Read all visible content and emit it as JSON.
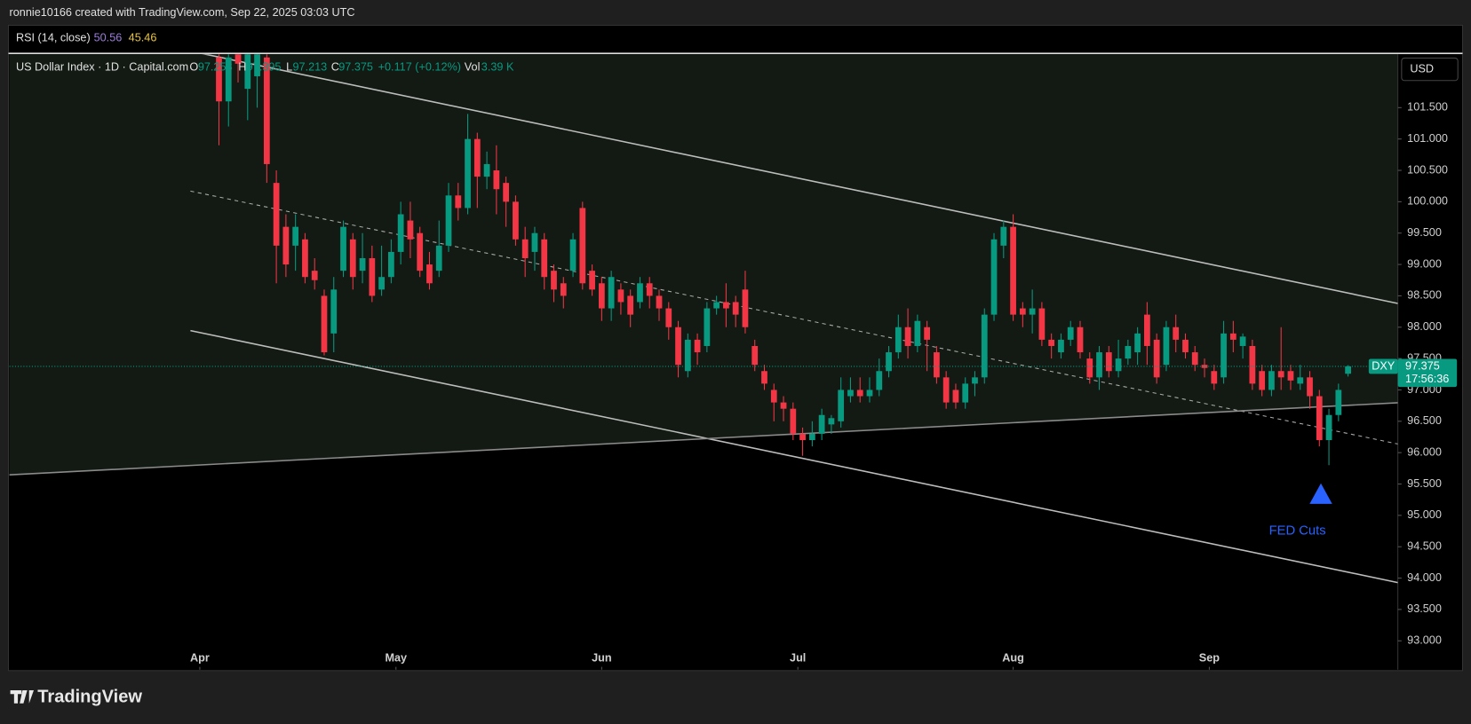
{
  "header": {
    "attribution": "ronnie10166 created with TradingView.com, Sep 22, 2025 03:03 UTC"
  },
  "rsi": {
    "label": "RSI (14, close)",
    "value1": "50.56",
    "value2": "45.46"
  },
  "legend": {
    "o": "O",
    "h": "H",
    "l": "L",
    "c": "C",
    "change": "+0.117 (+0.12%)",
    "vol_label": "Vol",
    "vol": "3.39 K"
  },
  "price_scale": {
    "currency": "USD",
    "symbol": "DXY",
    "countdown": "17:56:36"
  },
  "annotation": "FED Cuts",
  "footer": {
    "brand": "TradingView"
  },
  "chart_data": {
    "type": "candlestick",
    "title": "US Dollar Index · 1D · Capital.com",
    "up_color": "#089981",
    "down_color": "#f23645",
    "x": [
      2,
      3,
      4,
      5,
      6,
      7,
      8,
      9,
      10,
      11,
      12,
      13,
      14,
      15,
      16,
      17,
      18,
      19,
      20,
      21,
      22,
      23,
      24,
      25,
      26,
      27,
      28,
      29,
      30,
      31,
      32,
      33,
      34,
      35,
      36,
      37,
      38,
      39,
      40,
      41,
      42,
      43,
      44,
      45,
      46,
      47,
      48,
      49,
      50,
      51,
      52,
      53,
      54,
      55,
      56,
      57,
      58,
      59,
      60,
      61,
      62,
      63,
      64,
      65,
      66,
      67,
      68,
      69,
      70,
      71,
      72,
      73,
      74,
      75,
      76,
      77,
      78,
      79,
      80,
      81,
      82,
      83,
      84,
      85,
      86,
      87,
      88,
      89,
      90,
      91,
      92,
      93,
      94,
      95,
      96,
      97,
      98,
      99,
      100,
      101,
      102,
      103,
      104,
      105,
      106,
      107,
      108,
      109,
      110,
      111,
      112,
      113,
      114,
      115,
      116,
      117,
      118,
      119,
      120
    ],
    "ohlc": [
      [
        102.3,
        102.5,
        100.9,
        101.6
      ],
      [
        101.6,
        102.4,
        101.2,
        102.3
      ],
      [
        102.5,
        102.6,
        101.9,
        102.2
      ],
      [
        101.8,
        102.6,
        101.3,
        102.4
      ],
      [
        102.0,
        102.6,
        101.5,
        102.4
      ],
      [
        102.3,
        102.5,
        100.3,
        100.6
      ],
      [
        100.3,
        100.5,
        98.7,
        99.3
      ],
      [
        99.6,
        99.8,
        98.8,
        99.0
      ],
      [
        99.3,
        99.8,
        98.9,
        99.6
      ],
      [
        99.4,
        99.5,
        98.7,
        98.8
      ],
      [
        98.9,
        99.1,
        98.6,
        98.75
      ],
      [
        98.5,
        98.6,
        97.55,
        97.6
      ],
      [
        97.9,
        98.8,
        97.6,
        98.6
      ],
      [
        98.9,
        99.7,
        98.8,
        99.6
      ],
      [
        99.4,
        99.5,
        98.6,
        98.8
      ],
      [
        98.9,
        99.5,
        98.7,
        99.1
      ],
      [
        99.1,
        99.3,
        98.4,
        98.5
      ],
      [
        98.6,
        99.3,
        98.5,
        98.8
      ],
      [
        98.8,
        99.4,
        98.7,
        99.2
      ],
      [
        99.2,
        100.0,
        99.0,
        99.8
      ],
      [
        99.7,
        100.0,
        99.1,
        99.4
      ],
      [
        99.5,
        99.6,
        98.8,
        98.9
      ],
      [
        99.0,
        99.2,
        98.6,
        98.7
      ],
      [
        98.9,
        99.7,
        98.8,
        99.3
      ],
      [
        99.3,
        100.3,
        99.2,
        100.1
      ],
      [
        100.1,
        100.3,
        99.7,
        99.9
      ],
      [
        99.9,
        101.4,
        99.8,
        101.0
      ],
      [
        101.0,
        101.1,
        99.9,
        100.4
      ],
      [
        100.4,
        100.8,
        100.2,
        100.6
      ],
      [
        100.5,
        100.9,
        99.8,
        100.2
      ],
      [
        100.3,
        100.4,
        99.6,
        100.0
      ],
      [
        100.0,
        100.1,
        99.3,
        99.4
      ],
      [
        99.4,
        99.6,
        98.8,
        99.1
      ],
      [
        99.2,
        99.6,
        98.9,
        99.5
      ],
      [
        99.4,
        99.5,
        98.6,
        98.8
      ],
      [
        98.9,
        99.0,
        98.4,
        98.6
      ],
      [
        98.7,
        98.8,
        98.3,
        98.5
      ],
      [
        98.9,
        99.5,
        98.8,
        99.4
      ],
      [
        99.9,
        100.0,
        98.6,
        98.7
      ],
      [
        98.9,
        99.0,
        98.5,
        98.6
      ],
      [
        98.7,
        98.8,
        98.1,
        98.3
      ],
      [
        98.3,
        98.9,
        98.1,
        98.8
      ],
      [
        98.6,
        98.7,
        98.2,
        98.4
      ],
      [
        98.5,
        98.6,
        98.0,
        98.2
      ],
      [
        98.4,
        98.8,
        98.3,
        98.7
      ],
      [
        98.7,
        98.8,
        98.3,
        98.5
      ],
      [
        98.5,
        98.6,
        98.1,
        98.3
      ],
      [
        98.3,
        98.4,
        97.8,
        98.0
      ],
      [
        98.0,
        98.1,
        97.2,
        97.4
      ],
      [
        97.3,
        97.9,
        97.2,
        97.8
      ],
      [
        97.8,
        97.9,
        97.4,
        97.6
      ],
      [
        97.7,
        98.4,
        97.6,
        98.3
      ],
      [
        98.3,
        98.5,
        98.2,
        98.4
      ],
      [
        98.4,
        98.7,
        98.0,
        98.3
      ],
      [
        98.4,
        98.5,
        98.0,
        98.2
      ],
      [
        98.6,
        98.9,
        97.9,
        98.0
      ],
      [
        97.7,
        97.8,
        97.3,
        97.4
      ],
      [
        97.3,
        97.4,
        97.0,
        97.1
      ],
      [
        97.0,
        97.1,
        96.5,
        96.8
      ],
      [
        96.8,
        96.9,
        96.5,
        96.7
      ],
      [
        96.7,
        96.8,
        96.2,
        96.3
      ],
      [
        96.3,
        96.4,
        95.95,
        96.2
      ],
      [
        96.2,
        96.5,
        96.1,
        96.3
      ],
      [
        96.3,
        96.7,
        96.2,
        96.6
      ],
      [
        96.45,
        96.6,
        96.3,
        96.55
      ],
      [
        96.5,
        97.2,
        96.4,
        97.0
      ],
      [
        96.9,
        97.2,
        96.8,
        97.0
      ],
      [
        97.0,
        97.2,
        96.8,
        96.9
      ],
      [
        96.9,
        97.2,
        96.8,
        97.0
      ],
      [
        97.0,
        97.5,
        96.9,
        97.3
      ],
      [
        97.3,
        97.7,
        97.2,
        97.6
      ],
      [
        97.6,
        98.2,
        97.5,
        98.0
      ],
      [
        98.0,
        98.3,
        97.5,
        97.7
      ],
      [
        97.7,
        98.2,
        97.6,
        98.1
      ],
      [
        98.0,
        98.1,
        97.3,
        97.8
      ],
      [
        97.6,
        97.7,
        97.1,
        97.2
      ],
      [
        97.2,
        97.3,
        96.7,
        96.8
      ],
      [
        97.0,
        97.1,
        96.7,
        96.8
      ],
      [
        96.8,
        97.2,
        96.7,
        97.1
      ],
      [
        97.1,
        97.3,
        96.9,
        97.2
      ],
      [
        97.2,
        98.3,
        97.1,
        98.2
      ],
      [
        98.2,
        99.5,
        98.1,
        99.4
      ],
      [
        99.3,
        99.7,
        99.1,
        99.6
      ],
      [
        99.6,
        99.8,
        98.1,
        98.2
      ],
      [
        98.3,
        98.4,
        98.0,
        98.2
      ],
      [
        98.2,
        98.6,
        97.9,
        98.3
      ],
      [
        98.3,
        98.4,
        97.7,
        97.8
      ],
      [
        97.8,
        97.9,
        97.5,
        97.7
      ],
      [
        97.6,
        97.9,
        97.5,
        97.8
      ],
      [
        97.8,
        98.1,
        97.7,
        98.0
      ],
      [
        98.0,
        98.1,
        97.5,
        97.6
      ],
      [
        97.5,
        97.6,
        97.1,
        97.2
      ],
      [
        97.2,
        97.7,
        97.0,
        97.6
      ],
      [
        97.6,
        97.7,
        97.2,
        97.3
      ],
      [
        97.3,
        97.8,
        97.2,
        97.5
      ],
      [
        97.5,
        97.8,
        97.4,
        97.7
      ],
      [
        97.6,
        98.0,
        97.4,
        97.9
      ],
      [
        98.2,
        98.4,
        97.4,
        97.7
      ],
      [
        97.8,
        97.9,
        97.1,
        97.2
      ],
      [
        97.4,
        98.1,
        97.3,
        98.0
      ],
      [
        98.0,
        98.2,
        97.6,
        97.8
      ],
      [
        97.8,
        97.9,
        97.5,
        97.6
      ],
      [
        97.6,
        97.7,
        97.3,
        97.4
      ],
      [
        97.4,
        97.5,
        97.2,
        97.35
      ],
      [
        97.3,
        97.4,
        97.0,
        97.1
      ],
      [
        97.2,
        98.1,
        97.1,
        97.9
      ],
      [
        97.9,
        98.1,
        97.6,
        97.8
      ],
      [
        97.7,
        97.9,
        97.5,
        97.85
      ],
      [
        97.7,
        97.8,
        97.0,
        97.1
      ],
      [
        97.3,
        97.4,
        96.9,
        97.0
      ],
      [
        97.0,
        97.4,
        96.9,
        97.3
      ],
      [
        97.3,
        98.0,
        97.0,
        97.2
      ],
      [
        97.3,
        97.4,
        97.0,
        97.15
      ],
      [
        97.1,
        97.4,
        97.0,
        97.2
      ],
      [
        97.2,
        97.3,
        96.7,
        96.9
      ],
      [
        96.9,
        97.0,
        96.1,
        96.2
      ],
      [
        96.2,
        96.7,
        95.8,
        96.6
      ],
      [
        96.6,
        97.1,
        96.5,
        97.0
      ],
      [
        97.258,
        97.395,
        97.213,
        97.375
      ]
    ],
    "xlim": [
      -19.9,
      125.2
    ],
    "xticks": [
      {
        "value": 0,
        "label": "Apr"
      },
      {
        "value": 20.5,
        "label": "May"
      },
      {
        "value": 42,
        "label": "Jun"
      },
      {
        "value": 62.5,
        "label": "Jul"
      },
      {
        "value": 85,
        "label": "Aug"
      },
      {
        "value": 105.5,
        "label": "Sep"
      }
    ],
    "ylim": [
      92.54,
      102.35
    ],
    "yticks": [
      {
        "value": 93,
        "label": "93.000"
      },
      {
        "value": 93.5,
        "label": "93.500"
      },
      {
        "value": 94,
        "label": "94.000"
      },
      {
        "value": 94.5,
        "label": "94.500"
      },
      {
        "value": 95,
        "label": "95.000"
      },
      {
        "value": 95.5,
        "label": "95.500"
      },
      {
        "value": 96,
        "label": "96.000"
      },
      {
        "value": 96.5,
        "label": "96.500"
      },
      {
        "value": 97,
        "label": "97.000"
      },
      {
        "value": 97.5,
        "label": "97.500"
      },
      {
        "value": 98,
        "label": "98.000"
      },
      {
        "value": 98.5,
        "label": "98.500"
      },
      {
        "value": 99,
        "label": "99.000"
      },
      {
        "value": 99.5,
        "label": "99.500"
      },
      {
        "value": 100,
        "label": "100.000"
      },
      {
        "value": 100.5,
        "label": "100.500"
      },
      {
        "value": 101,
        "label": "101.000"
      },
      {
        "value": 101.5,
        "label": "101.500"
      }
    ]
  }
}
